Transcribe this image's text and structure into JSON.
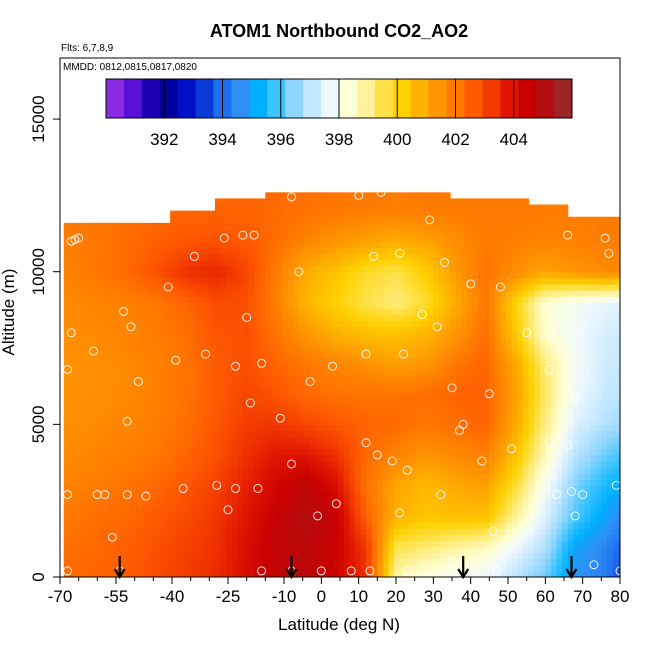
{
  "chart_data": {
    "type": "heatmap",
    "title": "ATOM1 Northbound CO2_AO2",
    "flights_note": "Flts: 6,7,8,9",
    "dates_note": "MMDD: 0812,0815,0817,0820",
    "xlabel": "Latitude (deg N)",
    "ylabel": "Altitude (m)",
    "xlim": [
      -70,
      80
    ],
    "ylim": [
      0,
      17000
    ],
    "x_ticks": [
      -70,
      -55,
      -40,
      -25,
      -10,
      0,
      10,
      20,
      30,
      40,
      50,
      60,
      70,
      80
    ],
    "x_minor_ticks": [
      -65,
      -60,
      -50,
      -45,
      -35,
      -30,
      -20,
      -15,
      -5,
      5,
      15,
      25,
      35,
      45,
      55,
      65,
      75
    ],
    "y_ticks": [
      0,
      5000,
      10000,
      15000
    ],
    "colorbar": {
      "min": 390,
      "max": 406,
      "tick_values": [
        392,
        394,
        396,
        398,
        400,
        402,
        404
      ],
      "tick_labels": [
        "392",
        "394",
        "396",
        "398",
        "400",
        "402",
        "404"
      ],
      "colors": [
        "#8a2be2",
        "#5a10d8",
        "#1a00b0",
        "#00009e",
        "#0010c8",
        "#0a3bd9",
        "#1e6ff0",
        "#2f8ff5",
        "#00b0ff",
        "#3cc4ff",
        "#8fd6ff",
        "#c4e8ff",
        "#eef8ff",
        "#ffffd8",
        "#fff29a",
        "#ffe24a",
        "#ffd000",
        "#ffb200",
        "#ff9500",
        "#ff7a00",
        "#ff5a00",
        "#f23a00",
        "#e01500",
        "#c80000",
        "#b40f10",
        "#9c2424"
      ]
    },
    "z_grid": {
      "lat": [
        -67,
        -60,
        -52,
        -44,
        -36,
        -28,
        -20,
        -12,
        -4,
        4,
        12,
        20,
        28,
        36,
        44,
        52,
        60,
        68,
        76,
        80
      ],
      "alt": [
        0,
        1000,
        2000,
        3000,
        4000,
        5000,
        6000,
        7000,
        8000,
        9000,
        10000,
        11000,
        12000,
        13000
      ],
      "co2": [
        [
          402.5,
          402.6,
          402.8,
          403.1,
          403.4,
          403.7,
          404.3,
          404.9,
          405.1,
          404.6,
          403.6,
          398.8,
          398.1,
          397.9,
          397.7,
          396.9,
          396.1,
          394.6,
          394.1,
          393.4
        ],
        [
          402.4,
          402.5,
          402.7,
          403.0,
          403.3,
          403.6,
          404.3,
          404.9,
          405.1,
          404.7,
          403.5,
          399.6,
          399.3,
          398.9,
          398.6,
          397.7,
          396.8,
          394.9,
          394.3,
          393.7
        ],
        [
          402.2,
          402.4,
          402.5,
          402.8,
          403.1,
          403.5,
          404.1,
          404.8,
          405.3,
          404.8,
          402.7,
          400.9,
          400.5,
          400.6,
          400.6,
          399.0,
          397.4,
          395.9,
          394.9,
          394.4
        ],
        [
          402.0,
          402.1,
          402.3,
          402.5,
          402.9,
          403.3,
          403.9,
          404.5,
          405.0,
          404.3,
          402.3,
          401.2,
          400.7,
          401.1,
          401.3,
          399.8,
          397.9,
          396.3,
          395.4,
          395.1
        ],
        [
          401.8,
          401.9,
          402.0,
          402.2,
          402.6,
          403.0,
          403.6,
          404.1,
          404.1,
          403.6,
          402.5,
          401.9,
          401.5,
          401.8,
          402.0,
          400.6,
          398.6,
          396.9,
          396.1,
          395.8
        ],
        [
          401.7,
          401.8,
          401.9,
          402.1,
          402.4,
          402.9,
          403.4,
          403.5,
          403.2,
          402.9,
          402.6,
          402.5,
          402.2,
          402.4,
          402.6,
          401.1,
          399.1,
          397.4,
          396.8,
          396.6
        ],
        [
          401.6,
          401.7,
          401.8,
          402.0,
          402.3,
          402.8,
          403.2,
          402.9,
          402.5,
          402.3,
          402.3,
          402.3,
          402.4,
          402.6,
          402.7,
          401.3,
          399.4,
          397.8,
          397.1,
          397.0
        ],
        [
          401.6,
          401.7,
          401.8,
          402.0,
          402.3,
          402.8,
          403.0,
          402.6,
          402.2,
          401.9,
          401.6,
          401.3,
          401.5,
          402.2,
          402.6,
          401.1,
          399.2,
          397.9,
          397.2,
          397.1
        ],
        [
          401.7,
          401.8,
          401.9,
          402.1,
          402.4,
          402.9,
          403.0,
          402.3,
          401.5,
          400.9,
          400.6,
          400.5,
          400.8,
          401.5,
          402.4,
          400.4,
          398.4,
          397.8,
          397.3,
          397.2
        ],
        [
          401.8,
          401.9,
          402.0,
          402.2,
          402.6,
          403.1,
          403.0,
          402.0,
          400.8,
          400.2,
          399.6,
          399.2,
          399.8,
          401.0,
          402.2,
          400.2,
          398.3,
          397.9,
          397.6,
          397.5
        ],
        [
          402.0,
          402.2,
          402.5,
          403.0,
          403.6,
          403.8,
          403.2,
          402.1,
          401.0,
          400.5,
          399.9,
          399.6,
          400.3,
          401.4,
          402.3,
          401.7,
          401.2,
          401.5,
          401.8,
          401.8
        ],
        [
          402.1,
          402.2,
          402.4,
          402.7,
          402.9,
          403.0,
          402.8,
          402.4,
          401.9,
          401.5,
          401.2,
          401.0,
          401.2,
          401.7,
          402.1,
          402.0,
          401.9,
          402.0,
          402.1,
          402.1
        ],
        [
          402.3,
          402.3,
          402.4,
          402.5,
          402.6,
          402.6,
          402.6,
          402.5,
          402.3,
          402.2,
          402.1,
          402.0,
          402.1,
          402.1,
          402.2,
          402.2,
          402.1,
          402.1,
          402.2,
          402.2
        ],
        [
          402.3,
          402.3,
          402.4,
          402.4,
          402.5,
          402.5,
          402.5,
          402.4,
          402.4,
          402.3,
          402.3,
          402.2,
          402.2,
          402.2,
          402.2,
          402.2,
          402.2,
          402.2,
          402.2,
          402.2
        ]
      ],
      "coverage_top_alt": [
        {
          "from": -69,
          "to": -57,
          "top": 11600
        },
        {
          "from": -57,
          "to": -41,
          "top": 11600
        },
        {
          "from": -41,
          "to": -29,
          "top": 12000
        },
        {
          "from": -29,
          "to": -15,
          "top": 12300
        },
        {
          "from": -15,
          "to": 35,
          "top": 12500
        },
        {
          "from": 35,
          "to": 46,
          "top": 12400
        },
        {
          "from": 46,
          "to": 56,
          "top": 12300
        },
        {
          "from": 56,
          "to": 66,
          "top": 12100
        },
        {
          "from": 66,
          "to": 80,
          "top": 11700
        }
      ]
    },
    "measurement_points": [
      [
        -68,
        200
      ],
      [
        -68,
        2700
      ],
      [
        -68,
        6800
      ],
      [
        -67,
        8000
      ],
      [
        -67,
        11000
      ],
      [
        -66,
        11050
      ],
      [
        -65,
        11100
      ],
      [
        -61,
        7400
      ],
      [
        -60,
        2700
      ],
      [
        -58,
        2700
      ],
      [
        -56,
        1300
      ],
      [
        -54,
        200
      ],
      [
        -53,
        8700
      ],
      [
        -52,
        5100
      ],
      [
        -52,
        2700
      ],
      [
        -51,
        8200
      ],
      [
        -49,
        6400
      ],
      [
        -47,
        2650
      ],
      [
        -41,
        9500
      ],
      [
        -39,
        7100
      ],
      [
        -37,
        2900
      ],
      [
        -34,
        10500
      ],
      [
        -31,
        7300
      ],
      [
        -28,
        3000
      ],
      [
        -26,
        11100
      ],
      [
        -25,
        2200
      ],
      [
        -23,
        2900
      ],
      [
        -23,
        6900
      ],
      [
        -21,
        11200
      ],
      [
        -20,
        8500
      ],
      [
        -19,
        5700
      ],
      [
        -18,
        11200
      ],
      [
        -17,
        2900
      ],
      [
        -16,
        7000
      ],
      [
        -16,
        200
      ],
      [
        -11,
        5200
      ],
      [
        -8,
        12450
      ],
      [
        -8,
        3700
      ],
      [
        -8,
        200
      ],
      [
        -6,
        10000
      ],
      [
        -3,
        6400
      ],
      [
        -1,
        2000
      ],
      [
        0,
        200
      ],
      [
        3,
        6900
      ],
      [
        4,
        2400
      ],
      [
        8,
        200
      ],
      [
        10,
        12500
      ],
      [
        12,
        7300
      ],
      [
        12,
        4400
      ],
      [
        13,
        200
      ],
      [
        14,
        10500
      ],
      [
        15,
        4000
      ],
      [
        16,
        12600
      ],
      [
        19,
        3800
      ],
      [
        21,
        10600
      ],
      [
        21,
        2100
      ],
      [
        22,
        7300
      ],
      [
        23,
        3500
      ],
      [
        23,
        200
      ],
      [
        27,
        8600
      ],
      [
        29,
        11700
      ],
      [
        31,
        8200
      ],
      [
        32,
        2700
      ],
      [
        33,
        10300
      ],
      [
        35,
        6200
      ],
      [
        35,
        500
      ],
      [
        36,
        200
      ],
      [
        37,
        4800
      ],
      [
        38,
        5000
      ],
      [
        39,
        12700
      ],
      [
        40,
        9600
      ],
      [
        41,
        200
      ],
      [
        43,
        3800
      ],
      [
        45,
        6000
      ],
      [
        46,
        1500
      ],
      [
        47,
        200
      ],
      [
        48,
        9500
      ],
      [
        51,
        4200
      ],
      [
        55,
        8000
      ],
      [
        61,
        6800
      ],
      [
        61,
        4400
      ],
      [
        61,
        8000
      ],
      [
        63,
        2700
      ],
      [
        66,
        11200
      ],
      [
        66,
        4300
      ],
      [
        67,
        2800
      ],
      [
        68,
        5900
      ],
      [
        68,
        6600
      ],
      [
        68,
        2000
      ],
      [
        69,
        8000
      ],
      [
        70,
        2700
      ],
      [
        71,
        12100
      ],
      [
        73,
        400
      ],
      [
        76,
        11100
      ],
      [
        77,
        10600
      ],
      [
        79,
        3000
      ],
      [
        80,
        200
      ]
    ],
    "arrow_latitudes": [
      -54,
      -8,
      38,
      67
    ]
  }
}
